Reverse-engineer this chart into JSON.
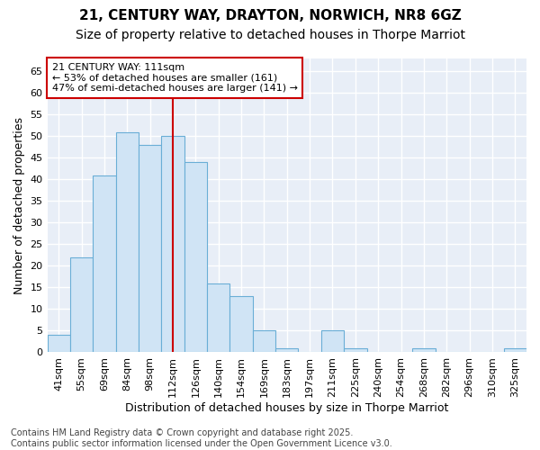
{
  "title_line1": "21, CENTURY WAY, DRAYTON, NORWICH, NR8 6GZ",
  "title_line2": "Size of property relative to detached houses in Thorpe Marriot",
  "xlabel": "Distribution of detached houses by size in Thorpe Marriot",
  "ylabel": "Number of detached properties",
  "categories": [
    "41sqm",
    "55sqm",
    "69sqm",
    "84sqm",
    "98sqm",
    "112sqm",
    "126sqm",
    "140sqm",
    "154sqm",
    "169sqm",
    "183sqm",
    "197sqm",
    "211sqm",
    "225sqm",
    "240sqm",
    "254sqm",
    "268sqm",
    "282sqm",
    "296sqm",
    "310sqm",
    "325sqm"
  ],
  "values": [
    4,
    22,
    41,
    51,
    48,
    50,
    44,
    16,
    13,
    5,
    1,
    0,
    5,
    1,
    0,
    0,
    1,
    0,
    0,
    0,
    1
  ],
  "bar_color": "#d0e4f5",
  "bar_edge_color": "#6aaed6",
  "red_line_index": 5,
  "annotation_line1": "21 CENTURY WAY: 111sqm",
  "annotation_line2": "← 53% of detached houses are smaller (161)",
  "annotation_line3": "47% of semi-detached houses are larger (141) →",
  "annotation_box_facecolor": "#ffffff",
  "annotation_box_edgecolor": "#cc0000",
  "ylim_max": 68,
  "yticks": [
    0,
    5,
    10,
    15,
    20,
    25,
    30,
    35,
    40,
    45,
    50,
    55,
    60,
    65
  ],
  "footer_text": "Contains HM Land Registry data © Crown copyright and database right 2025.\nContains public sector information licensed under the Open Government Licence v3.0.",
  "fig_bg_color": "#ffffff",
  "plot_bg_color": "#e8eef7",
  "grid_color": "#ffffff",
  "title1_fontsize": 11,
  "title2_fontsize": 10,
  "axis_label_fontsize": 9,
  "tick_fontsize": 8,
  "annotation_fontsize": 8,
  "footer_fontsize": 7
}
